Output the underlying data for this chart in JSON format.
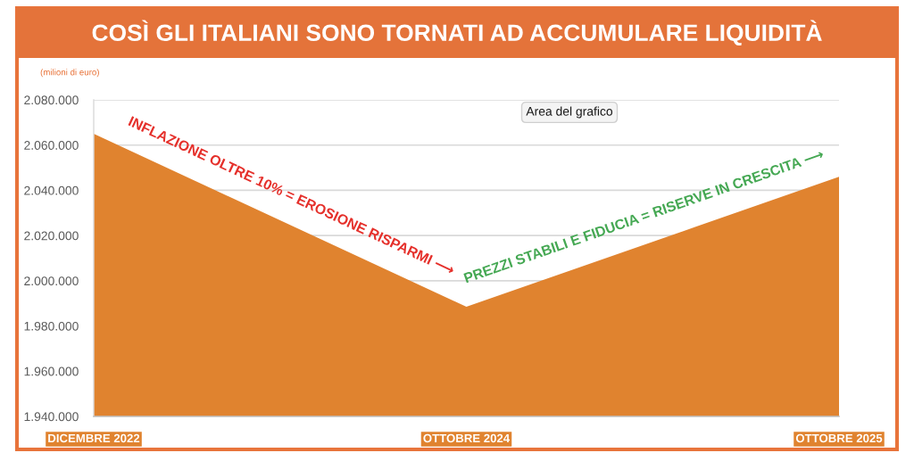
{
  "chart_data": {
    "type": "area",
    "title": "COSÌ GLI ITALIANI SONO TORNATI AD ACCUMULARE LIQUIDITÀ",
    "ylabel": "(milioni di euro)",
    "categories": [
      "DICEMBRE 2022",
      "OTTOBRE 2024",
      "OTTOBRE 2025"
    ],
    "series": [
      {
        "color": "#e0832f",
        "values": [
          2065000,
          1988500,
          2046000
        ]
      }
    ],
    "ylim": [
      1940000,
      2080000
    ],
    "yticks": [
      {
        "value": 1940000,
        "label": "1.940.000"
      },
      {
        "value": 1960000,
        "label": "1.960.000"
      },
      {
        "value": 1980000,
        "label": "1.980.000"
      },
      {
        "value": 2000000,
        "label": "2.000.000"
      },
      {
        "value": 2020000,
        "label": "2.020.000"
      },
      {
        "value": 2040000,
        "label": "2.040.000"
      },
      {
        "value": 2060000,
        "label": "2.060.000"
      },
      {
        "value": 2080000,
        "label": "2.080.000"
      }
    ],
    "grid": "y",
    "annotations": [
      "INFLAZIONE OLTRE 10% = EROSIONE RISPARMI ⟶",
      "PREZZI STABILI E FIDUCIA = RISERVE IN CRESCITA ⟶",
      "Area del grafico"
    ]
  }
}
